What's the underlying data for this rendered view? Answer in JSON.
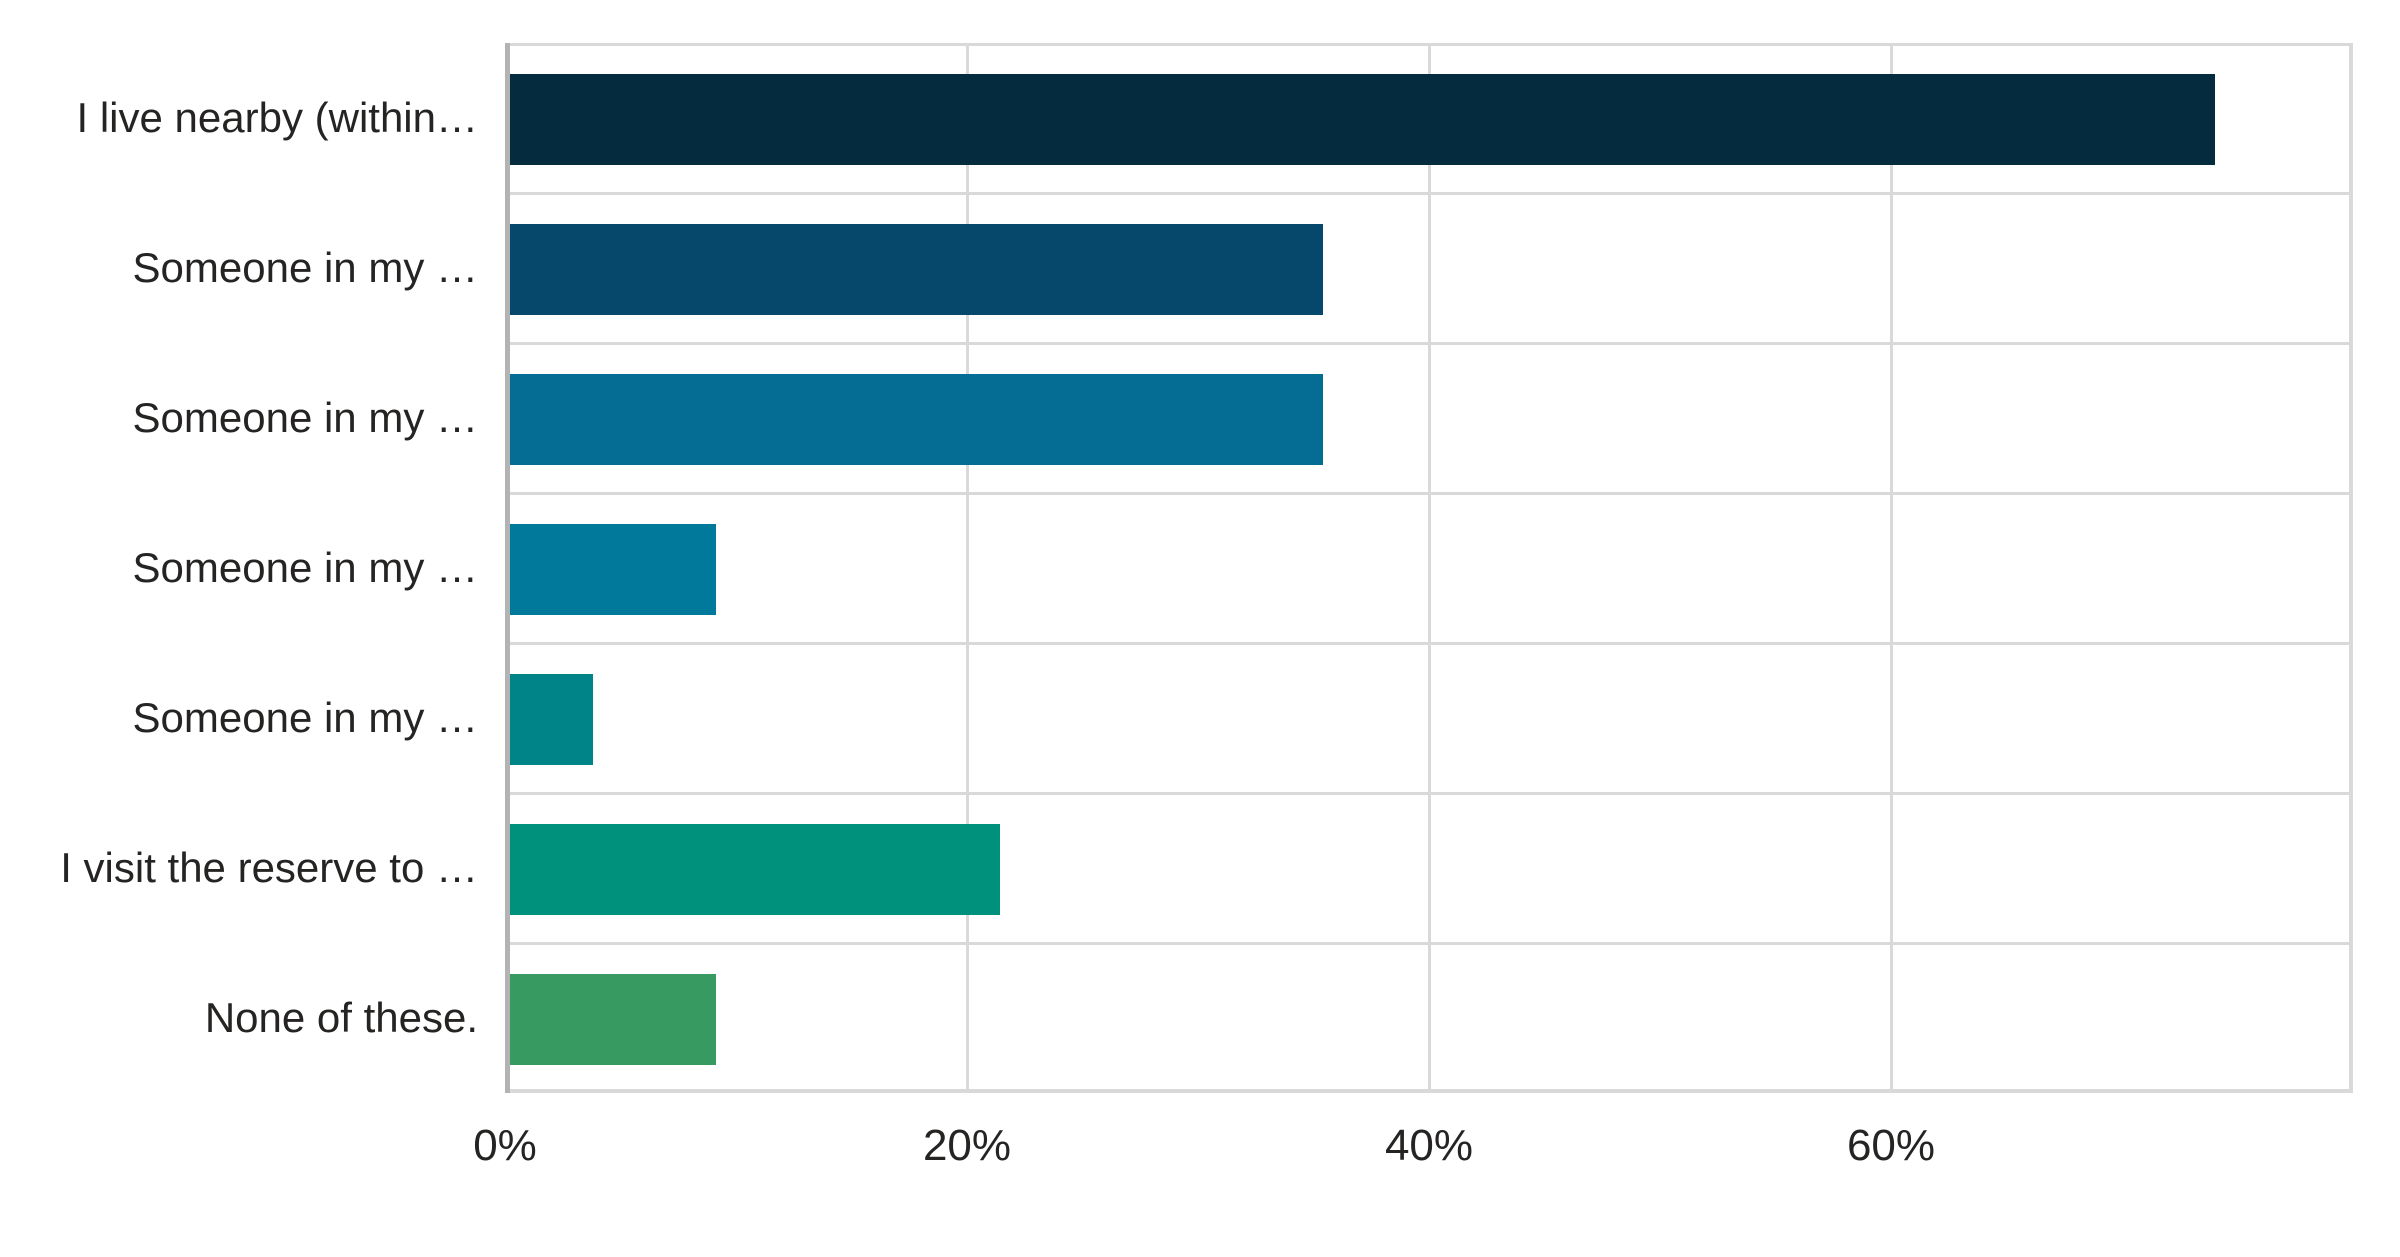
{
  "chart_data": {
    "type": "bar",
    "orientation": "horizontal",
    "title": "",
    "xlabel": "",
    "ylabel": "",
    "categories": [
      "I live nearby (within…",
      "Someone in my …",
      "Someone in my …",
      "Someone in my …",
      "Someone in my …",
      "I visit the reserve to …",
      "None of these."
    ],
    "values": [
      73.8,
      35.2,
      35.2,
      8.9,
      3.6,
      21.2,
      8.9
    ],
    "value_unit": "%",
    "xlim": [
      0,
      80
    ],
    "x_ticks": [
      {
        "value": 0,
        "label": "0%"
      },
      {
        "value": 20,
        "label": "20%"
      },
      {
        "value": 40,
        "label": "40%"
      },
      {
        "value": 60,
        "label": "60%"
      }
    ],
    "grid": "vertical-and-row-separators",
    "legend": "none",
    "bar_colors": [
      "#052C3E",
      "#05486B",
      "#056C94",
      "#00799B",
      "#008488",
      "#00917C",
      "#379A60"
    ],
    "style_colors": {
      "background": "#FFFFFF",
      "gridline": "#D9D9D9",
      "axis_line": "#B3B3B3",
      "text": "#252423"
    }
  }
}
